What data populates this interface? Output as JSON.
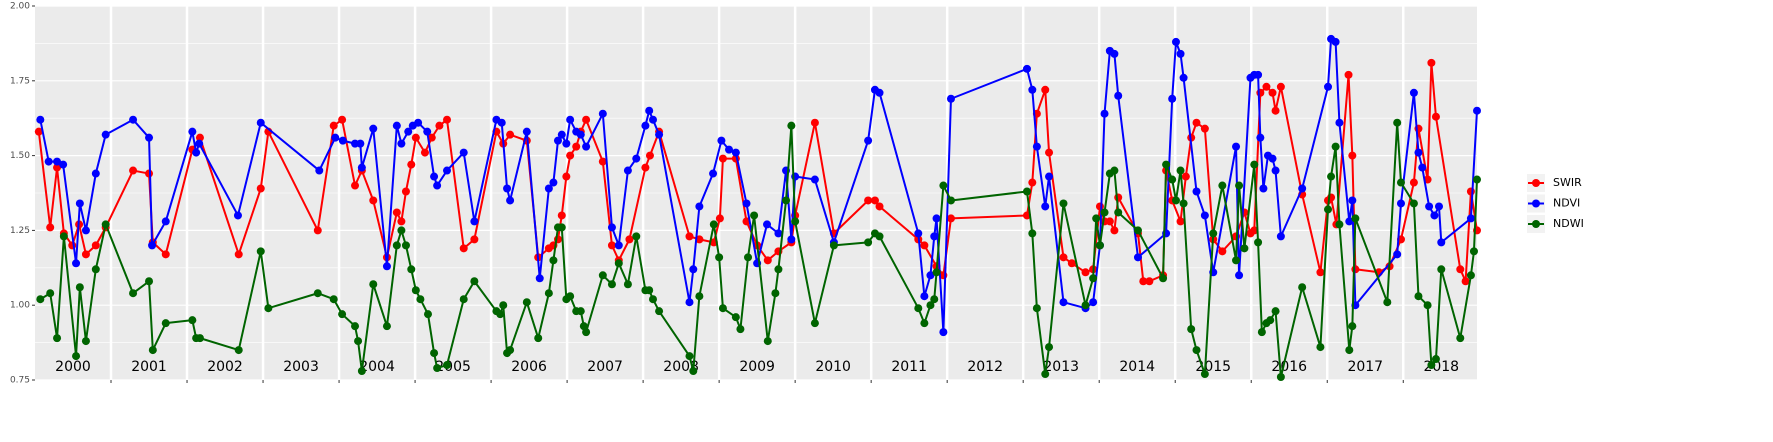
{
  "chart_data": {
    "type": "line",
    "xlim": [
      2000,
      2018.97
    ],
    "xticks": [
      2001,
      2002,
      2003,
      2004,
      2005,
      2006,
      2007,
      2008,
      2009,
      2010,
      2011,
      2012,
      2013,
      2014,
      2015,
      2016,
      2017,
      2018
    ],
    "year_labels": [
      {
        "value": 2000.5,
        "label": "2000"
      },
      {
        "value": 2001.5,
        "label": "2001"
      },
      {
        "value": 2002.5,
        "label": "2002"
      },
      {
        "value": 2003.5,
        "label": "2003"
      },
      {
        "value": 2004.5,
        "label": "2004"
      },
      {
        "value": 2005.5,
        "label": "2005"
      },
      {
        "value": 2006.5,
        "label": "2006"
      },
      {
        "value": 2007.5,
        "label": "2007"
      },
      {
        "value": 2008.5,
        "label": "2008"
      },
      {
        "value": 2009.5,
        "label": "2009"
      },
      {
        "value": 2010.5,
        "label": "2010"
      },
      {
        "value": 2011.5,
        "label": "2011"
      },
      {
        "value": 2012.5,
        "label": "2012"
      },
      {
        "value": 2013.5,
        "label": "2013"
      },
      {
        "value": 2014.5,
        "label": "2014"
      },
      {
        "value": 2015.5,
        "label": "2015"
      },
      {
        "value": 2016.5,
        "label": "2016"
      },
      {
        "value": 2017.5,
        "label": "2017"
      },
      {
        "value": 2018.5,
        "label": "2018"
      }
    ],
    "ylim": [
      0.75,
      2.0
    ],
    "yticks": [
      {
        "value": 0.75,
        "label": "0.75"
      },
      {
        "value": 1,
        "label": "1.00"
      },
      {
        "value": 1.25,
        "label": "1.25"
      },
      {
        "value": 1.5,
        "label": "1.50"
      },
      {
        "value": 1.75,
        "label": "1.75"
      },
      {
        "value": 2,
        "label": "2.00"
      }
    ],
    "grid": true,
    "legend": "right",
    "series": [
      {
        "name": "SWIR",
        "color": "#ff0000",
        "x": [
          2000.05,
          2000.2,
          2000.29,
          2000.38,
          2000.49,
          2000.58,
          2000.67,
          2000.8,
          2000.93,
          2001.29,
          2001.5,
          2001.55,
          2001.72,
          2002.07,
          2002.17,
          2002.68,
          2002.97,
          2003.07,
          2003.72,
          2003.93,
          2004.04,
          2004.21,
          2004.3,
          2004.45,
          2004.63,
          2004.76,
          2004.82,
          2004.88,
          2004.95,
          2005.01,
          2005.13,
          2005.22,
          2005.32,
          2005.42,
          2005.64,
          2005.78,
          2006.07,
          2006.16,
          2006.25,
          2006.47,
          2006.62,
          2006.76,
          2006.82,
          2006.88,
          2006.93,
          2006.99,
          2007.04,
          2007.12,
          2007.18,
          2007.25,
          2007.47,
          2007.59,
          2007.68,
          2007.82,
          2008.03,
          2008.09,
          2008.21,
          2008.61,
          2008.74,
          2008.93,
          2009.01,
          2009.05,
          2009.22,
          2009.36,
          2009.5,
          2009.64,
          2009.78,
          2009.95,
          2010.0,
          2010.26,
          2010.51,
          2010.96,
          2011.05,
          2011.11,
          2011.62,
          2011.7,
          2011.86,
          2011.95,
          2012.05,
          2013.05,
          2013.12,
          2013.18,
          2013.29,
          2013.34,
          2013.53,
          2013.64,
          2013.82,
          2013.92,
          2014.01,
          2014.07,
          2014.14,
          2014.2,
          2014.25,
          2014.51,
          2014.58,
          2014.66,
          2014.84,
          2014.88,
          2014.96,
          2015.07,
          2015.14,
          2015.21,
          2015.28,
          2015.39,
          2015.5,
          2015.62,
          2015.8,
          2015.91,
          2015.99,
          2016.04,
          2016.12,
          2016.2,
          2016.28,
          2016.32,
          2016.39,
          2016.67,
          2016.91,
          2017.01,
          2017.05,
          2017.12,
          2017.28,
          2017.33,
          2017.37,
          2017.68,
          2017.82,
          2017.97,
          2018.14,
          2018.2,
          2018.32,
          2018.37,
          2018.43,
          2018.75,
          2018.82,
          2018.89,
          2018.97
        ],
        "values": [
          1.58,
          1.26,
          1.46,
          1.24,
          1.2,
          1.27,
          1.17,
          1.2,
          1.26,
          1.45,
          1.44,
          1.21,
          1.17,
          1.52,
          1.56,
          1.17,
          1.39,
          1.58,
          1.25,
          1.6,
          1.62,
          1.4,
          1.45,
          1.35,
          1.16,
          1.31,
          1.28,
          1.38,
          1.47,
          1.56,
          1.51,
          1.56,
          1.6,
          1.62,
          1.19,
          1.22,
          1.58,
          1.54,
          1.57,
          1.55,
          1.16,
          1.19,
          1.2,
          1.22,
          1.3,
          1.43,
          1.5,
          1.53,
          1.58,
          1.62,
          1.48,
          1.2,
          1.15,
          1.22,
          1.46,
          1.5,
          1.58,
          1.23,
          1.22,
          1.21,
          1.29,
          1.49,
          1.49,
          1.28,
          1.2,
          1.15,
          1.18,
          1.21,
          1.3,
          1.61,
          1.24,
          1.35,
          1.35,
          1.33,
          1.22,
          1.2,
          1.13,
          1.1,
          1.29,
          1.3,
          1.41,
          1.64,
          1.72,
          1.51,
          1.16,
          1.14,
          1.11,
          1.12,
          1.33,
          1.28,
          1.28,
          1.25,
          1.36,
          1.24,
          1.08,
          1.08,
          1.1,
          1.45,
          1.35,
          1.28,
          1.43,
          1.56,
          1.61,
          1.59,
          1.22,
          1.18,
          1.23,
          1.31,
          1.24,
          1.25,
          1.71,
          1.73,
          1.71,
          1.65,
          1.73,
          1.37,
          1.11,
          1.35,
          1.36,
          1.27,
          1.77,
          1.5,
          1.12,
          1.11,
          1.13,
          1.22,
          1.41,
          1.59,
          1.42,
          1.81,
          1.63,
          1.12,
          1.08,
          1.38,
          1.25
        ]
      },
      {
        "name": "NDVI",
        "color": "#0000ff",
        "x": [
          2000.07,
          2000.18,
          2000.29,
          2000.37,
          2000.54,
          2000.59,
          2000.67,
          2000.8,
          2000.93,
          2001.29,
          2001.5,
          2001.54,
          2001.72,
          2002.07,
          2002.12,
          2002.16,
          2002.67,
          2002.97,
          2003.74,
          2003.95,
          2004.05,
          2004.21,
          2004.28,
          2004.3,
          2004.45,
          2004.63,
          2004.76,
          2004.82,
          2004.91,
          2004.97,
          2005.04,
          2005.16,
          2005.25,
          2005.29,
          2005.42,
          2005.64,
          2005.78,
          2006.07,
          2006.14,
          2006.21,
          2006.25,
          2006.47,
          2006.64,
          2006.76,
          2006.82,
          2006.88,
          2006.93,
          2006.99,
          2007.04,
          2007.12,
          2007.18,
          2007.25,
          2007.47,
          2007.59,
          2007.68,
          2007.8,
          2007.91,
          2008.03,
          2008.08,
          2008.13,
          2008.21,
          2008.61,
          2008.66,
          2008.74,
          2008.92,
          2009.03,
          2009.13,
          2009.22,
          2009.36,
          2009.5,
          2009.63,
          2009.78,
          2009.88,
          2009.95,
          2010.0,
          2010.26,
          2010.51,
          2010.96,
          2011.05,
          2011.11,
          2011.62,
          2011.7,
          2011.78,
          2011.83,
          2011.86,
          2011.95,
          2012.05,
          2013.05,
          2013.12,
          2013.18,
          2013.29,
          2013.34,
          2013.53,
          2013.82,
          2013.92,
          2014.01,
          2014.07,
          2014.14,
          2014.2,
          2014.25,
          2014.51,
          2014.88,
          2014.96,
          2015.01,
          2015.07,
          2015.11,
          2015.28,
          2015.39,
          2015.5,
          2015.8,
          2015.84,
          2015.99,
          2016.04,
          2016.09,
          2016.12,
          2016.16,
          2016.22,
          2016.28,
          2016.32,
          2016.39,
          2016.67,
          2017.01,
          2017.05,
          2017.11,
          2017.16,
          2017.29,
          2017.33,
          2017.37,
          2017.92,
          2017.97,
          2018.14,
          2018.2,
          2018.25,
          2018.34,
          2018.41,
          2018.47,
          2018.5,
          2018.89,
          2018.97
        ],
        "values": [
          1.62,
          1.48,
          1.48,
          1.47,
          1.14,
          1.34,
          1.25,
          1.44,
          1.57,
          1.62,
          1.56,
          1.2,
          1.28,
          1.58,
          1.51,
          1.54,
          1.3,
          1.61,
          1.45,
          1.56,
          1.55,
          1.54,
          1.54,
          1.46,
          1.59,
          1.13,
          1.6,
          1.54,
          1.58,
          1.6,
          1.61,
          1.58,
          1.43,
          1.4,
          1.45,
          1.51,
          1.28,
          1.62,
          1.61,
          1.39,
          1.35,
          1.58,
          1.09,
          1.39,
          1.41,
          1.55,
          1.57,
          1.54,
          1.62,
          1.58,
          1.57,
          1.53,
          1.64,
          1.26,
          1.2,
          1.45,
          1.49,
          1.6,
          1.65,
          1.62,
          1.57,
          1.01,
          1.12,
          1.33,
          1.44,
          1.55,
          1.52,
          1.51,
          1.34,
          1.14,
          1.27,
          1.24,
          1.45,
          1.22,
          1.43,
          1.42,
          1.21,
          1.55,
          1.72,
          1.71,
          1.24,
          1.03,
          1.1,
          1.23,
          1.29,
          0.91,
          1.69,
          1.79,
          1.72,
          1.53,
          1.33,
          1.43,
          1.01,
          0.99,
          1.01,
          1.2,
          1.64,
          1.85,
          1.84,
          1.7,
          1.16,
          1.24,
          1.69,
          1.88,
          1.84,
          1.76,
          1.38,
          1.3,
          1.11,
          1.53,
          1.1,
          1.76,
          1.77,
          1.77,
          1.56,
          1.39,
          1.5,
          1.49,
          1.45,
          1.23,
          1.39,
          1.73,
          1.89,
          1.88,
          1.61,
          1.28,
          1.35,
          1.0,
          1.17,
          1.34,
          1.71,
          1.51,
          1.46,
          1.33,
          1.3,
          1.33,
          1.21,
          1.29,
          1.65
        ]
      },
      {
        "name": "NDWI",
        "color": "#006400",
        "x": [
          2000.07,
          2000.2,
          2000.29,
          2000.38,
          2000.54,
          2000.59,
          2000.67,
          2000.8,
          2000.93,
          2001.29,
          2001.5,
          2001.55,
          2001.72,
          2002.07,
          2002.12,
          2002.17,
          2002.68,
          2002.97,
          2003.07,
          2003.72,
          2003.93,
          2004.04,
          2004.21,
          2004.25,
          2004.3,
          2004.45,
          2004.63,
          2004.76,
          2004.82,
          2004.88,
          2004.95,
          2005.01,
          2005.07,
          2005.17,
          2005.25,
          2005.29,
          2005.42,
          2005.64,
          2005.78,
          2006.07,
          2006.12,
          2006.16,
          2006.21,
          2006.25,
          2006.47,
          2006.62,
          2006.76,
          2006.82,
          2006.88,
          2006.93,
          2006.99,
          2007.04,
          2007.12,
          2007.18,
          2007.22,
          2007.25,
          2007.47,
          2007.59,
          2007.68,
          2007.8,
          2007.91,
          2008.03,
          2008.08,
          2008.13,
          2008.21,
          2008.61,
          2008.66,
          2008.74,
          2008.93,
          2009.0,
          2009.05,
          2009.22,
          2009.28,
          2009.38,
          2009.46,
          2009.64,
          2009.74,
          2009.78,
          2009.88,
          2009.95,
          2010.0,
          2010.26,
          2010.51,
          2010.96,
          2011.05,
          2011.11,
          2011.62,
          2011.7,
          2011.78,
          2011.83,
          2011.86,
          2011.95,
          2012.05,
          2013.05,
          2013.12,
          2013.18,
          2013.29,
          2013.34,
          2013.53,
          2013.82,
          2013.92,
          2013.96,
          2014.01,
          2014.07,
          2014.14,
          2014.2,
          2014.25,
          2014.51,
          2014.84,
          2014.88,
          2014.96,
          2015.01,
          2015.07,
          2015.11,
          2015.21,
          2015.28,
          2015.39,
          2015.5,
          2015.62,
          2015.8,
          2015.84,
          2015.91,
          2016.04,
          2016.09,
          2016.14,
          2016.2,
          2016.25,
          2016.32,
          2016.39,
          2016.67,
          2016.91,
          2017.01,
          2017.05,
          2017.11,
          2017.16,
          2017.29,
          2017.33,
          2017.37,
          2017.79,
          2017.92,
          2017.97,
          2018.14,
          2018.2,
          2018.32,
          2018.37,
          2018.43,
          2018.5,
          2018.75,
          2018.89,
          2018.93,
          2018.97
        ],
        "values": [
          1.02,
          1.04,
          0.89,
          1.23,
          0.83,
          1.06,
          0.88,
          1.12,
          1.27,
          1.04,
          1.08,
          0.85,
          0.94,
          0.95,
          0.89,
          0.89,
          0.85,
          1.18,
          0.99,
          1.04,
          1.02,
          0.97,
          0.93,
          0.88,
          0.78,
          1.07,
          0.93,
          1.2,
          1.25,
          1.2,
          1.12,
          1.05,
          1.02,
          0.97,
          0.84,
          0.79,
          0.8,
          1.02,
          1.08,
          0.98,
          0.97,
          1.0,
          0.84,
          0.85,
          1.01,
          0.89,
          1.04,
          1.15,
          1.26,
          1.26,
          1.02,
          1.03,
          0.98,
          0.98,
          0.93,
          0.91,
          1.1,
          1.07,
          1.14,
          1.07,
          1.23,
          1.05,
          1.05,
          1.02,
          0.98,
          0.83,
          0.78,
          1.03,
          1.27,
          1.16,
          0.99,
          0.96,
          0.92,
          1.16,
          1.3,
          0.88,
          1.04,
          1.12,
          1.35,
          1.6,
          1.28,
          0.94,
          1.2,
          1.21,
          1.24,
          1.23,
          0.99,
          0.94,
          1.0,
          1.02,
          1.11,
          1.4,
          1.35,
          1.38,
          1.24,
          0.99,
          0.77,
          0.86,
          1.34,
          1.0,
          1.09,
          1.29,
          1.2,
          1.31,
          1.44,
          1.45,
          1.31,
          1.25,
          1.09,
          1.47,
          1.42,
          1.35,
          1.45,
          1.34,
          0.92,
          0.85,
          0.77,
          1.24,
          1.4,
          1.15,
          1.4,
          1.19,
          1.47,
          1.21,
          0.91,
          0.94,
          0.95,
          0.98,
          0.76,
          1.06,
          0.86,
          1.32,
          1.43,
          1.53,
          1.27,
          0.85,
          0.93,
          1.29,
          1.01,
          1.61,
          1.41,
          1.34,
          1.03,
          1.0,
          0.8,
          0.82,
          1.12,
          0.89,
          1.1,
          1.18,
          1.42
        ]
      }
    ]
  }
}
